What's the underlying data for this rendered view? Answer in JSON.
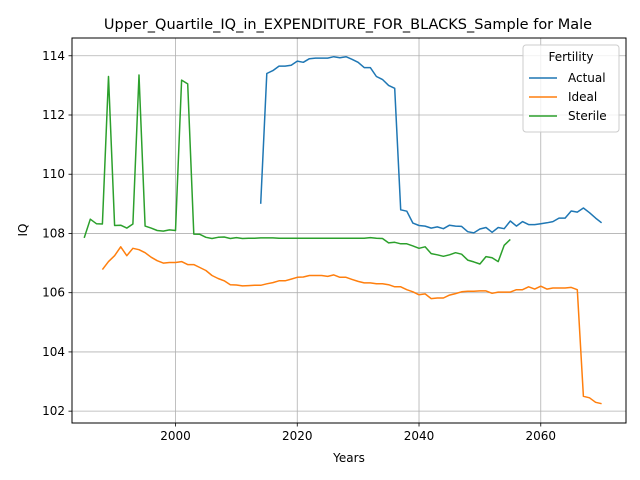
{
  "chart_data": {
    "type": "line",
    "title": "Upper_Quartile_IQ_in_EXPENDITURE_FOR_BLACKS_Sample for Male",
    "xlabel": "Years",
    "ylabel": "IQ",
    "xlim": [
      1983,
      2074
    ],
    "ylim": [
      101.6,
      114.6
    ],
    "xticks": [
      2000,
      2020,
      2040,
      2060
    ],
    "yticks": [
      102,
      104,
      106,
      108,
      110,
      112,
      114
    ],
    "grid": true,
    "legend": {
      "title": "Fertility",
      "position": "upper-right"
    },
    "series": [
      {
        "name": "Actual",
        "color": "#1f77b4",
        "x": [
          2014,
          2015,
          2016,
          2017,
          2018,
          2019,
          2020,
          2021,
          2022,
          2023,
          2024,
          2025,
          2026,
          2027,
          2028,
          2029,
          2030,
          2031,
          2032,
          2033,
          2034,
          2035,
          2036,
          2037,
          2038,
          2039,
          2040,
          2041,
          2042,
          2043,
          2044,
          2045,
          2046,
          2047,
          2048,
          2049,
          2050,
          2051,
          2052,
          2053,
          2054,
          2055,
          2056,
          2057,
          2058,
          2059,
          2060,
          2061,
          2062,
          2063,
          2064,
          2065,
          2066,
          2067,
          2068,
          2069,
          2070
        ],
        "values": [
          109.0,
          113.4,
          113.5,
          113.65,
          113.65,
          113.68,
          113.82,
          113.78,
          113.9,
          113.92,
          113.92,
          113.92,
          113.97,
          113.93,
          113.97,
          113.88,
          113.78,
          113.6,
          113.6,
          113.3,
          113.2,
          113.0,
          112.9,
          108.8,
          108.75,
          108.35,
          108.27,
          108.25,
          108.18,
          108.22,
          108.16,
          108.28,
          108.25,
          108.24,
          108.06,
          108.02,
          108.15,
          108.2,
          108.04,
          108.2,
          108.16,
          108.42,
          108.25,
          108.4,
          108.3,
          108.3,
          108.33,
          108.36,
          108.4,
          108.52,
          108.52,
          108.76,
          108.72,
          108.86,
          108.7,
          108.52,
          108.36
        ]
      },
      {
        "name": "Ideal",
        "color": "#ff7f0e",
        "x": [
          1988,
          1989,
          1990,
          1991,
          1992,
          1993,
          1994,
          1995,
          1996,
          1997,
          1998,
          1999,
          2000,
          2001,
          2002,
          2003,
          2004,
          2005,
          2006,
          2007,
          2008,
          2009,
          2010,
          2011,
          2012,
          2013,
          2014,
          2015,
          2016,
          2017,
          2018,
          2019,
          2020,
          2021,
          2022,
          2023,
          2024,
          2025,
          2026,
          2027,
          2028,
          2029,
          2030,
          2031,
          2032,
          2033,
          2034,
          2035,
          2036,
          2037,
          2038,
          2039,
          2040,
          2041,
          2042,
          2043,
          2044,
          2045,
          2046,
          2047,
          2048,
          2049,
          2050,
          2051,
          2052,
          2053,
          2054,
          2055,
          2056,
          2057,
          2058,
          2059,
          2060,
          2061,
          2062,
          2063,
          2064,
          2065,
          2066,
          2067,
          2068,
          2069,
          2070
        ],
        "values": [
          106.78,
          107.05,
          107.25,
          107.55,
          107.25,
          107.5,
          107.45,
          107.35,
          107.2,
          107.08,
          107.0,
          107.02,
          107.02,
          107.05,
          106.95,
          106.95,
          106.85,
          106.75,
          106.58,
          106.48,
          106.4,
          106.27,
          106.26,
          106.23,
          106.24,
          106.25,
          106.25,
          106.3,
          106.34,
          106.4,
          106.4,
          106.46,
          106.52,
          106.53,
          106.58,
          106.58,
          106.58,
          106.55,
          106.6,
          106.52,
          106.52,
          106.45,
          106.38,
          106.33,
          106.33,
          106.3,
          106.3,
          106.27,
          106.2,
          106.2,
          106.1,
          106.03,
          105.93,
          105.96,
          105.8,
          105.82,
          105.82,
          105.92,
          105.97,
          106.03,
          106.05,
          106.05,
          106.06,
          106.06,
          105.98,
          106.02,
          106.02,
          106.02,
          106.1,
          106.1,
          106.2,
          106.12,
          106.22,
          106.12,
          106.16,
          106.16,
          106.16,
          106.18,
          106.1,
          102.5,
          102.45,
          102.3,
          102.25
        ]
      },
      {
        "name": "Sterile",
        "color": "#2ca02c",
        "x": [
          1985,
          1986,
          1987,
          1988,
          1989,
          1990,
          1991,
          1992,
          1993,
          1994,
          1995,
          1996,
          1997,
          1998,
          1999,
          2000,
          2001,
          2002,
          2003,
          2004,
          2005,
          2006,
          2007,
          2008,
          2009,
          2010,
          2011,
          2012,
          2013,
          2014,
          2015,
          2016,
          2017,
          2018,
          2019,
          2020,
          2021,
          2022,
          2023,
          2024,
          2025,
          2026,
          2027,
          2028,
          2029,
          2030,
          2031,
          2032,
          2033,
          2034,
          2035,
          2036,
          2037,
          2038,
          2039,
          2040,
          2041,
          2042,
          2043,
          2044,
          2045,
          2046,
          2047,
          2048,
          2049,
          2050,
          2051,
          2052,
          2053,
          2054,
          2055
        ],
        "values": [
          107.85,
          108.48,
          108.33,
          108.32,
          113.3,
          108.27,
          108.28,
          108.18,
          108.32,
          113.35,
          108.25,
          108.18,
          108.1,
          108.08,
          108.12,
          108.1,
          113.18,
          113.05,
          107.98,
          107.97,
          107.87,
          107.83,
          107.87,
          107.88,
          107.83,
          107.86,
          107.83,
          107.84,
          107.84,
          107.85,
          107.85,
          107.85,
          107.84,
          107.84,
          107.84,
          107.84,
          107.84,
          107.84,
          107.84,
          107.84,
          107.84,
          107.84,
          107.84,
          107.84,
          107.84,
          107.84,
          107.84,
          107.86,
          107.84,
          107.83,
          107.68,
          107.7,
          107.65,
          107.65,
          107.58,
          107.5,
          107.55,
          107.32,
          107.28,
          107.23,
          107.28,
          107.35,
          107.3,
          107.1,
          107.04,
          106.97,
          107.22,
          107.18,
          107.05,
          107.6,
          107.8
        ]
      }
    ]
  }
}
